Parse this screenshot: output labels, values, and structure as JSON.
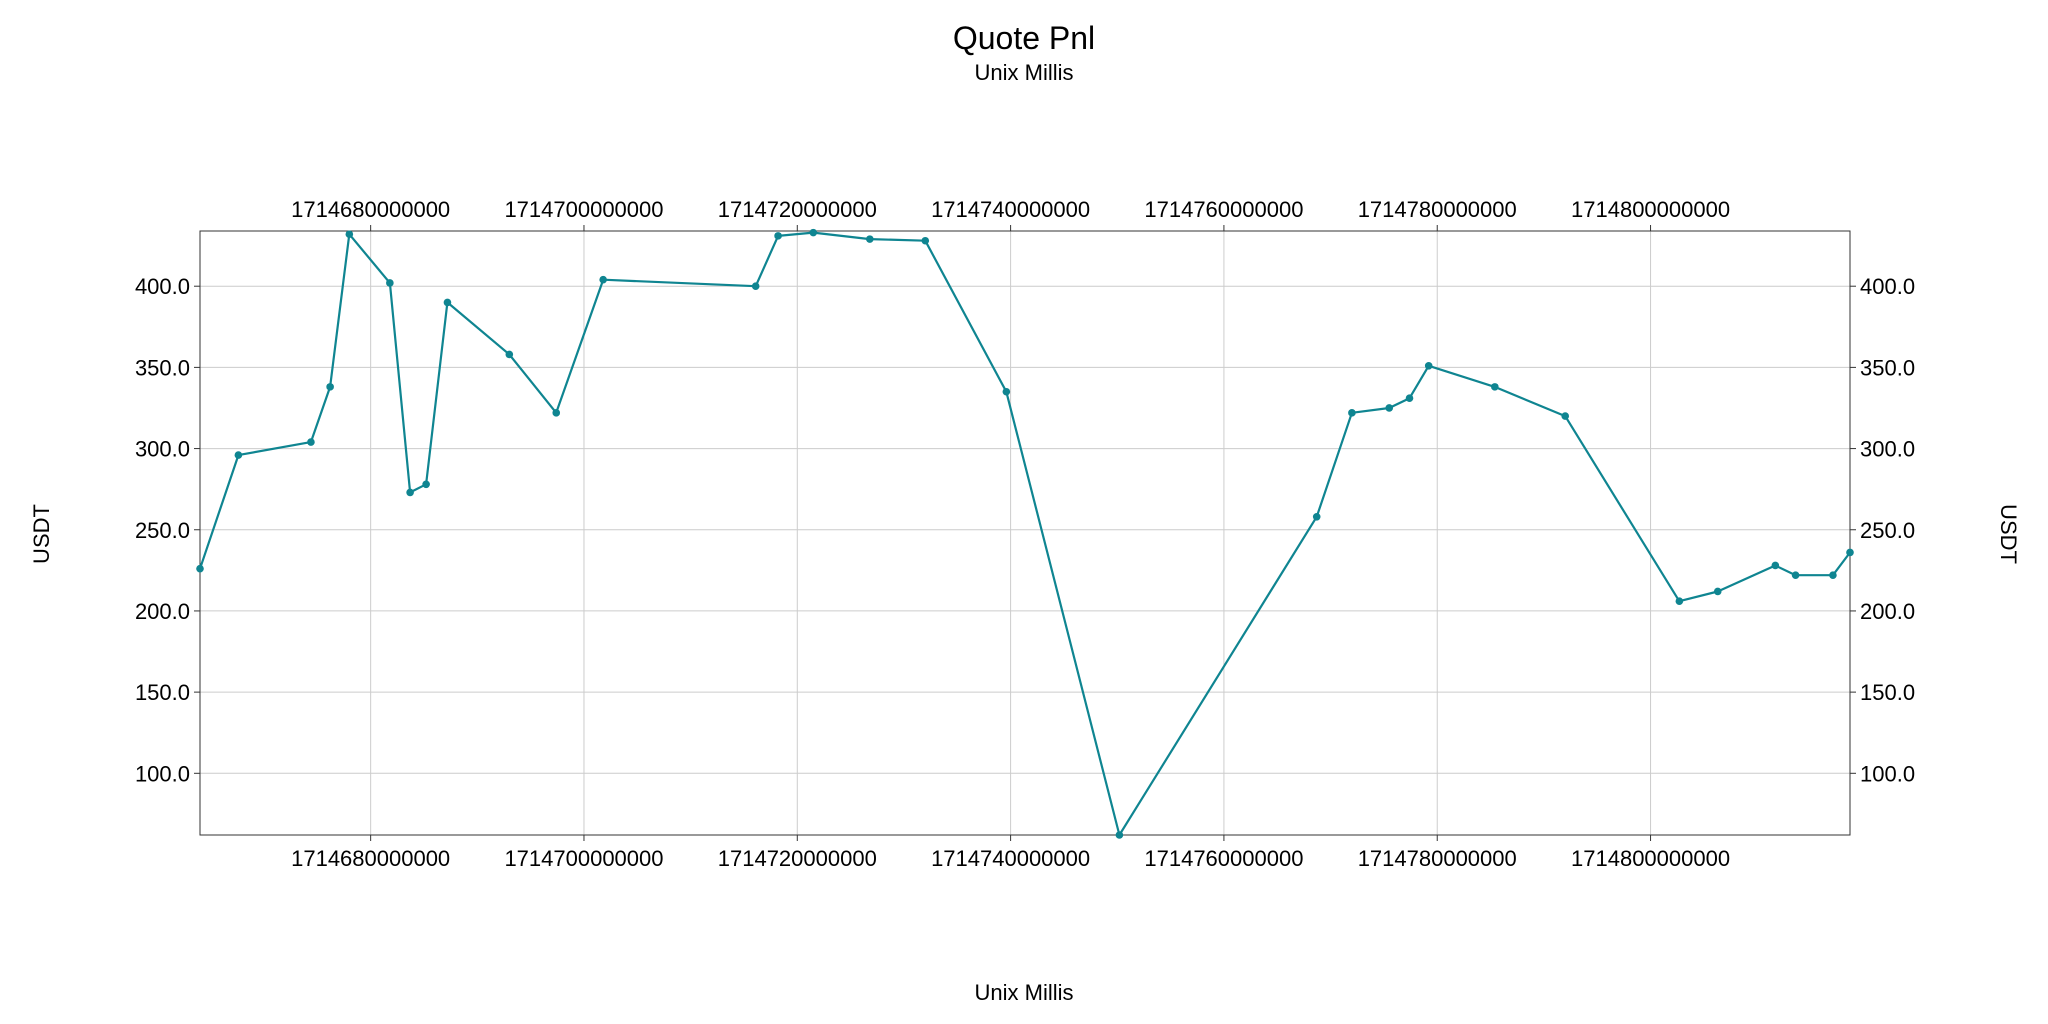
{
  "chart_data": {
    "type": "line",
    "title": "Quote Pnl",
    "subtitle": "Unix Millis",
    "xlabel": "Unix Millis",
    "ylabel": "USDT",
    "xlim": [
      1714664000000,
      1714818700000
    ],
    "ylim": [
      62,
      434
    ],
    "x_ticks": [
      1714680000000,
      1714700000000,
      1714720000000,
      1714740000000,
      1714760000000,
      1714780000000,
      1714800000000
    ],
    "x_tick_labels": [
      "1714680000000",
      "1714700000000",
      "1714720000000",
      "1714740000000",
      "1714760000000",
      "1714780000000",
      "1714800000000"
    ],
    "y_ticks": [
      100,
      150,
      200,
      250,
      300,
      350,
      400
    ],
    "y_tick_labels": [
      "100.0",
      "150.0",
      "200.0",
      "250.0",
      "300.0",
      "350.0",
      "400.0"
    ],
    "grid": true,
    "color": "#0f8591",
    "series": [
      {
        "x": [
          1714664000000,
          1714667600000,
          1714674400000,
          1714676200000,
          1714678000000,
          1714681800000,
          1714683700000,
          1714685200000,
          1714687200000,
          1714693000000,
          1714697400000,
          1714701800000,
          1714716100000,
          1714718200000,
          1714721500000,
          1714726800000,
          1714732000000,
          1714739600000,
          1714750200000,
          1714768700000,
          1714772000000,
          1714775500000,
          1714777400000,
          1714779200000,
          1714785400000,
          1714792000000,
          1714802700000,
          1714806300000,
          1714811700000,
          1714813600000,
          1714817100000,
          1714818700000
        ],
        "y": [
          226,
          296,
          304,
          338,
          432,
          402,
          273,
          278,
          390,
          358,
          322,
          404,
          400,
          431,
          433,
          429,
          428,
          335,
          62,
          258,
          322,
          325,
          331,
          351,
          338,
          320,
          206,
          212,
          228,
          222,
          222,
          236
        ]
      }
    ]
  }
}
